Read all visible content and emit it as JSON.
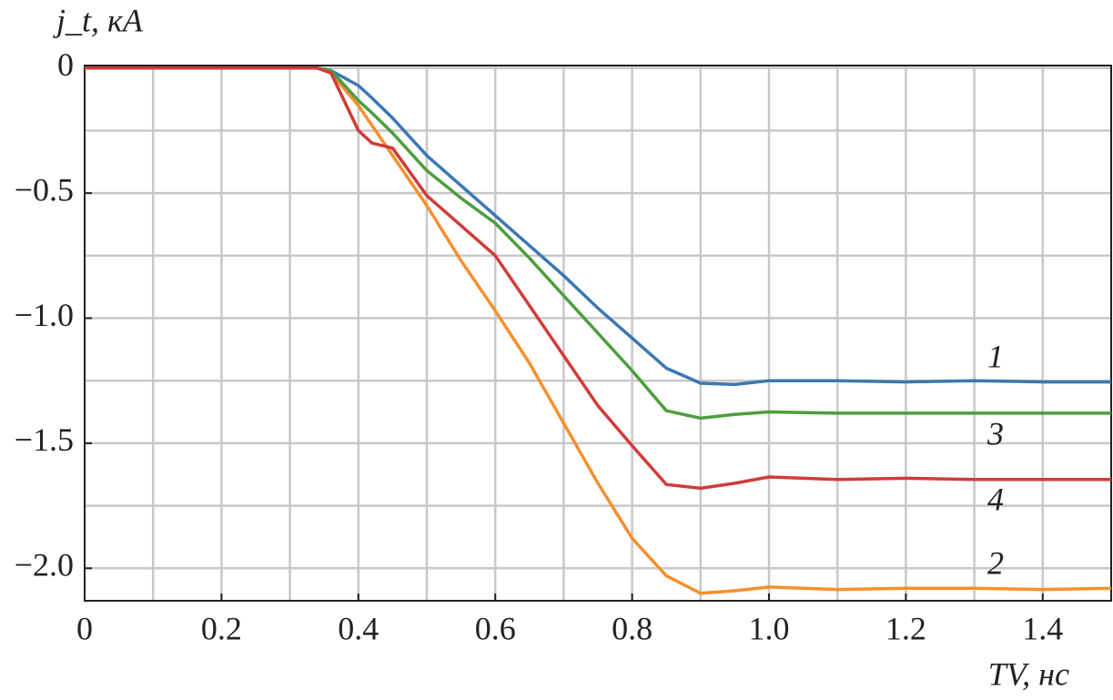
{
  "chart_data": {
    "type": "line",
    "xlabel": "TV, нс",
    "ylabel": "j_t, кА",
    "x": [
      0,
      0.34,
      0.36,
      0.4,
      0.42,
      0.45,
      0.5,
      0.55,
      0.6,
      0.65,
      0.7,
      0.75,
      0.8,
      0.85,
      0.9,
      0.95,
      1.0,
      1.1,
      1.2,
      1.3,
      1.4,
      1.5
    ],
    "series": [
      {
        "name": "1",
        "color": "#3b78b3",
        "values": [
          0,
          0,
          -0.01,
          -0.07,
          -0.12,
          -0.2,
          -0.35,
          -0.47,
          -0.59,
          -0.71,
          -0.83,
          -0.96,
          -1.08,
          -1.2,
          -1.26,
          -1.265,
          -1.25,
          -1.25,
          -1.255,
          -1.25,
          -1.255,
          -1.255
        ]
      },
      {
        "name": "2",
        "color": "#f5902e",
        "values": [
          0,
          0,
          -0.02,
          -0.15,
          -0.23,
          -0.35,
          -0.55,
          -0.77,
          -0.97,
          -1.18,
          -1.42,
          -1.66,
          -1.88,
          -2.03,
          -2.1,
          -2.09,
          -2.075,
          -2.085,
          -2.08,
          -2.08,
          -2.085,
          -2.08
        ]
      },
      {
        "name": "3",
        "color": "#4c9e3e",
        "values": [
          0,
          0,
          -0.01,
          -0.13,
          -0.18,
          -0.26,
          -0.41,
          -0.52,
          -0.62,
          -0.76,
          -0.91,
          -1.06,
          -1.21,
          -1.37,
          -1.4,
          -1.385,
          -1.375,
          -1.38,
          -1.38,
          -1.38,
          -1.38,
          -1.38
        ]
      },
      {
        "name": "4",
        "color": "#d03c3a",
        "values": [
          0,
          0,
          -0.02,
          -0.25,
          -0.3,
          -0.32,
          -0.51,
          -0.63,
          -0.75,
          -0.95,
          -1.15,
          -1.35,
          -1.51,
          -1.665,
          -1.68,
          -1.66,
          -1.635,
          -1.645,
          -1.64,
          -1.645,
          -1.645,
          -1.645
        ]
      }
    ],
    "xlim": [
      0,
      1.5
    ],
    "ylim": [
      -2.13,
      0.01
    ],
    "xticks": [
      0,
      0.2,
      0.4,
      0.6,
      0.8,
      {
        "value": 1,
        "label": "1.0"
      },
      1.2,
      1.4
    ],
    "yticks": [
      0,
      {
        "value": -0.5,
        "label": "−0.5"
      },
      {
        "value": -1,
        "label": "−1.0"
      },
      {
        "value": -1.5,
        "label": "−1.5"
      },
      {
        "value": -2,
        "label": "−2.0"
      }
    ],
    "xgrid": [
      0.1,
      0.2,
      0.3,
      0.4,
      0.5,
      0.6,
      0.7,
      0.8,
      0.9,
      1,
      1.1,
      1.2,
      1.3,
      1.4
    ],
    "ygrid": [
      0,
      -0.25,
      -0.5,
      -0.75,
      -1,
      -1.25,
      -1.5,
      -1.75,
      -2
    ],
    "grid": true
  }
}
